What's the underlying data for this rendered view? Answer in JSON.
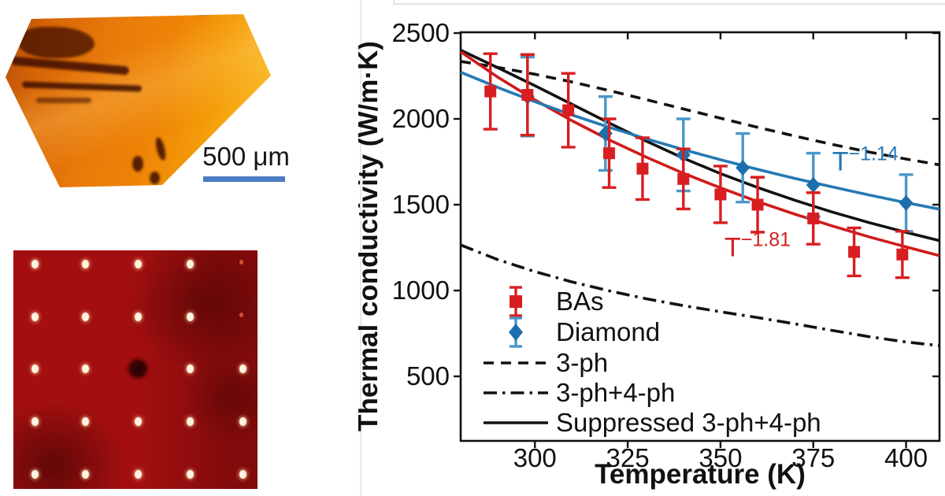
{
  "figure": {
    "crystal": {
      "scale_bar_label": "500 μm"
    },
    "tdtr_map": {
      "cols_pct": [
        8.7,
        29.4,
        51.0,
        72.3,
        93.9
      ],
      "rows_pct": [
        5.6,
        27.7,
        49.5,
        71.6,
        93.7
      ],
      "missing": [
        [
          2,
          2
        ]
      ],
      "faint": [
        [
          0,
          4
        ],
        [
          1,
          4
        ]
      ]
    }
  },
  "chart_data": {
    "type": "line+scatter",
    "xlabel": "Temperature (K)",
    "ylabel": "Thermal conductivity (W/m·K)",
    "xlim": [
      280,
      409
    ],
    "ylim": [
      126,
      2504
    ],
    "xticks": [
      300,
      325,
      350,
      375,
      400
    ],
    "yticks": [
      500,
      1000,
      1500,
      2000,
      2500
    ],
    "grid": false,
    "legend_position": "lower-left",
    "scatter_series": [
      {
        "name": "Diamond",
        "marker": "diamond",
        "color": "#1b6fad",
        "err_color": "#4a97c9",
        "x": [
          298,
          319,
          340,
          356,
          375,
          400
        ],
        "y": [
          2130,
          1915,
          1790,
          1715,
          1615,
          1510
        ],
        "yerr": [
          230,
          215,
          210,
          200,
          185,
          165
        ]
      },
      {
        "name": "BAs",
        "marker": "square",
        "color": "#d81e20",
        "err_color": "#d81e20",
        "x": [
          288,
          298,
          309,
          320,
          329,
          340,
          350,
          360,
          375,
          386,
          399
        ],
        "y": [
          2160,
          2140,
          2050,
          1800,
          1710,
          1650,
          1560,
          1500,
          1420,
          1225,
          1210
        ],
        "yerr": [
          220,
          235,
          215,
          200,
          180,
          175,
          165,
          160,
          150,
          140,
          135
        ]
      }
    ],
    "line_series": [
      {
        "name": "3-ph",
        "style": "dashed",
        "color": "#111111",
        "x": [
          280,
          290,
          300,
          310,
          320,
          330,
          340,
          350,
          360,
          370,
          380,
          390,
          400,
          409
        ],
        "y": [
          2335,
          2300,
          2260,
          2215,
          2165,
          2112,
          2058,
          2004,
          1951,
          1900,
          1852,
          1807,
          1766,
          1732
        ]
      },
      {
        "name": "3-ph+4-ph",
        "style": "dashdot",
        "color": "#111111",
        "x": [
          280,
          290,
          300,
          310,
          320,
          330,
          340,
          350,
          360,
          370,
          380,
          390,
          400,
          409
        ],
        "y": [
          1265,
          1180,
          1110,
          1050,
          998,
          952,
          912,
          876,
          842,
          806,
          768,
          731,
          700,
          679
        ]
      },
      {
        "name": "Suppressed 3-ph+4-ph",
        "style": "solid",
        "color": "#111111",
        "x": [
          280,
          290,
          300,
          310,
          320,
          330,
          340,
          350,
          360,
          370,
          380,
          390,
          400,
          409
        ],
        "y": [
          2400,
          2298,
          2193,
          2085,
          1976,
          1870,
          1771,
          1681,
          1600,
          1526,
          1458,
          1396,
          1339,
          1291
        ]
      },
      {
        "name": "BAs fit T^-1.81",
        "style": "solid",
        "color": "#cf1b1b",
        "x": [
          280,
          290,
          300,
          310,
          320,
          330,
          340,
          350,
          360,
          370,
          380,
          390,
          400,
          409
        ],
        "y": [
          2391,
          2243,
          2110,
          1989,
          1878,
          1777,
          1683,
          1598,
          1518,
          1445,
          1377,
          1313,
          1254,
          1203
        ]
      },
      {
        "name": "Diamond fit T^-1.14",
        "style": "solid",
        "color": "#2679b3",
        "x": [
          280,
          290,
          300,
          310,
          320,
          330,
          340,
          350,
          360,
          370,
          380,
          390,
          400,
          409
        ],
        "y": [
          2272,
          2183,
          2100,
          2023,
          1951,
          1884,
          1821,
          1762,
          1706,
          1653,
          1604,
          1557,
          1512,
          1474
        ]
      }
    ],
    "legend": {
      "items": [
        {
          "label": "BAs",
          "swatch": "square-err",
          "color": "#d81e20",
          "err_color": "#d81e20"
        },
        {
          "label": "Diamond",
          "swatch": "diamond-err",
          "color": "#1b6fad",
          "err_color": "#4a97c9"
        },
        {
          "label": "3-ph",
          "swatch": "dashed",
          "color": "#111111"
        },
        {
          "label": "3-ph+4-ph",
          "swatch": "dashdot",
          "color": "#111111"
        },
        {
          "label": "Suppressed 3-ph+4-ph",
          "swatch": "solid",
          "color": "#111111"
        }
      ]
    },
    "annotations": [
      {
        "base": "T",
        "sup": "−1.14",
        "color": "#2878b5",
        "x": 389,
        "y": 1700
      },
      {
        "base": "T",
        "sup": "−1.81",
        "color": "#d21f1f",
        "x": 360,
        "y": 1200
      }
    ]
  }
}
